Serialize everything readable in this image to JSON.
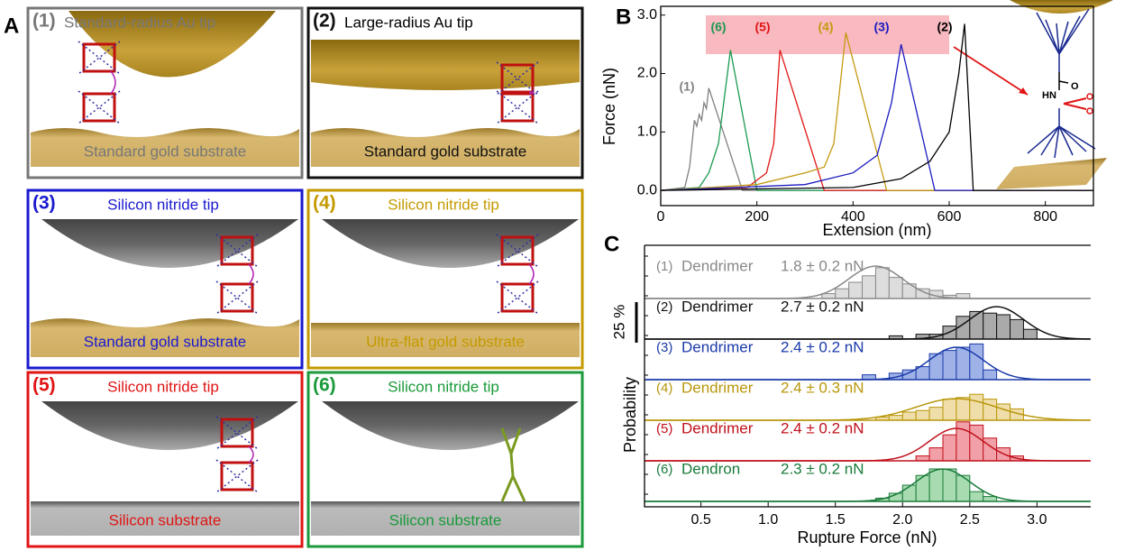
{
  "panel_labels": [
    "A",
    "B",
    "C"
  ],
  "boxes": [
    {
      "number": "(1)",
      "tip": "Standard-radius Au tip",
      "substrate": "Standard gold substrate",
      "color": "#777777"
    },
    {
      "number": "(2)",
      "tip": "Large-radius Au tip",
      "substrate": "Standard gold substrate",
      "color": "#111111"
    },
    {
      "number": "(3)",
      "tip": "Silicon nitride tip",
      "substrate": "Standard gold substrate",
      "color": "#1a1ad0"
    },
    {
      "number": "(4)",
      "tip": "Silicon nitride tip",
      "substrate": "Ultra-flat gold substrate",
      "color": "#c49a00"
    },
    {
      "number": "(5)",
      "tip": "Silicon nitride tip",
      "substrate": "Silicon substrate",
      "color": "#e01515"
    },
    {
      "number": "(6)",
      "tip": "Silicon nitride tip",
      "substrate": "Silicon substrate",
      "color": "#1a9a3a"
    }
  ],
  "chart_data": [
    {
      "type": "line",
      "xlabel": "Extension (nm)",
      "ylabel": "Force (nN)",
      "xlim": [
        0,
        900
      ],
      "xticks": [
        0,
        200,
        400,
        600,
        800
      ],
      "ylim": [
        -0.26,
        3.15
      ],
      "yticks": [
        {
          "value": 0,
          "label": "0.0"
        },
        {
          "value": 1,
          "label": "1.0"
        },
        {
          "value": 2,
          "label": "2.0"
        },
        {
          "value": 3,
          "label": "3.0"
        }
      ],
      "series": [
        {
          "name": "(1)",
          "color": "#808080",
          "x": [
            0,
            50,
            60,
            70,
            75,
            80,
            85,
            90,
            95,
            100,
            170,
            900
          ],
          "values": [
            0,
            0.05,
            0.4,
            1.2,
            1.1,
            1.3,
            1.2,
            1.5,
            1.4,
            1.75,
            0,
            0
          ]
        },
        {
          "name": "(6)",
          "color": "#1a9a50",
          "x": [
            0,
            80,
            100,
            120,
            145,
            200,
            900
          ],
          "values": [
            0,
            0.05,
            0.3,
            0.8,
            2.4,
            0,
            0
          ]
        },
        {
          "name": "(5)",
          "color": "#e01515",
          "x": [
            0,
            180,
            220,
            235,
            248,
            340,
            900
          ],
          "values": [
            0,
            0.05,
            0.3,
            0.8,
            2.4,
            0,
            0
          ]
        },
        {
          "name": "(4)",
          "color": "#c49a10",
          "x": [
            0,
            200,
            300,
            340,
            360,
            385,
            470,
            900
          ],
          "values": [
            0,
            0.1,
            0.3,
            0.4,
            0.8,
            2.7,
            0,
            0
          ]
        },
        {
          "name": "(3)",
          "color": "#1a1ac0",
          "x": [
            0,
            300,
            400,
            450,
            480,
            500,
            570,
            900
          ],
          "values": [
            0,
            0.1,
            0.3,
            0.6,
            1.5,
            2.5,
            0,
            0
          ]
        },
        {
          "name": "(2)",
          "color": "#000000",
          "x": [
            0,
            400,
            500,
            560,
            600,
            620,
            632,
            650,
            900
          ],
          "values": [
            0,
            0.05,
            0.2,
            0.5,
            1.0,
            2.0,
            2.85,
            0,
            0
          ]
        }
      ]
    },
    {
      "type": "histogram",
      "xlabel": "Rupture Force (nN)",
      "ylabel": "Probability",
      "scale_bar": {
        "value": 25,
        "label": "25 %"
      },
      "xlim": [
        0.08,
        3.4
      ],
      "xticks": [
        0.5,
        {
          "value": 1,
          "label": "1.0"
        },
        1.5,
        {
          "value": 2,
          "label": "2.0"
        },
        2.5,
        {
          "value": 3,
          "label": "3.0"
        }
      ],
      "series": [
        {
          "number": "(1)",
          "name": "Dendrimer",
          "label": "1.8 ± 0.2 nN",
          "mean": 1.8,
          "sd": 0.2,
          "color": "#888888",
          "fill": "#dddddd",
          "bins": [
            1.4,
            1.5,
            1.6,
            1.7,
            1.8,
            1.9,
            2.0,
            2.1,
            2.2,
            2.3,
            2.4,
            2.5
          ],
          "values": [
            3,
            6,
            10,
            14,
            19,
            13,
            9,
            6,
            5,
            2,
            3
          ]
        },
        {
          "number": "(2)",
          "name": "Dendrimer",
          "label": "2.7 ± 0.2 nN",
          "mean": 2.7,
          "sd": 0.2,
          "color": "#111111",
          "fill": "#aaaaaa",
          "bins": [
            1.9,
            2.0,
            2.1,
            2.2,
            2.3,
            2.4,
            2.5,
            2.6,
            2.7,
            2.8,
            2.9,
            3.0
          ],
          "values": [
            2,
            0,
            3,
            3,
            8,
            14,
            17,
            16,
            15,
            12,
            6
          ]
        },
        {
          "number": "(3)",
          "name": "Dendrimer",
          "label": "2.4 ± 0.2 nN",
          "mean": 2.4,
          "sd": 0.2,
          "color": "#1a3aa8",
          "fill": "#9fb2e8",
          "bins": [
            1.7,
            1.8,
            1.9,
            2.0,
            2.1,
            2.2,
            2.3,
            2.4,
            2.5,
            2.6,
            2.7
          ],
          "values": [
            3,
            0,
            4,
            6,
            8,
            16,
            18,
            20,
            22,
            6
          ]
        },
        {
          "number": "(4)",
          "name": "Dendrimer",
          "label": "2.4 ± 0.3 nN",
          "mean": 2.4,
          "sd": 0.3,
          "color": "#b8960a",
          "fill": "#f0deaa",
          "bins": [
            1.8,
            1.9,
            2.0,
            2.1,
            2.2,
            2.3,
            2.4,
            2.5,
            2.6,
            2.7,
            2.8,
            2.9
          ],
          "values": [
            2,
            3,
            5,
            6,
            8,
            13,
            14,
            16,
            13,
            10,
            7
          ]
        },
        {
          "number": "(5)",
          "name": "Dendrimer",
          "label": "2.4 ± 0.2 nN",
          "mean": 2.4,
          "sd": 0.2,
          "color": "#c0101a",
          "fill": "#f2a0a8",
          "bins": [
            2.1,
            2.2,
            2.3,
            2.4,
            2.5,
            2.6,
            2.7,
            2.8,
            2.9
          ],
          "values": [
            3,
            8,
            16,
            24,
            22,
            14,
            8,
            3
          ]
        },
        {
          "number": "(6)",
          "name": "Dendron",
          "label": "2.3 ± 0.2 nN",
          "mean": 2.3,
          "sd": 0.2,
          "color": "#1a7a3a",
          "fill": "#a8dcb0",
          "bins": [
            1.8,
            1.9,
            2.0,
            2.1,
            2.2,
            2.3,
            2.4,
            2.5,
            2.6,
            2.7
          ],
          "values": [
            2,
            5,
            10,
            16,
            20,
            20,
            16,
            6,
            3
          ]
        }
      ]
    }
  ]
}
